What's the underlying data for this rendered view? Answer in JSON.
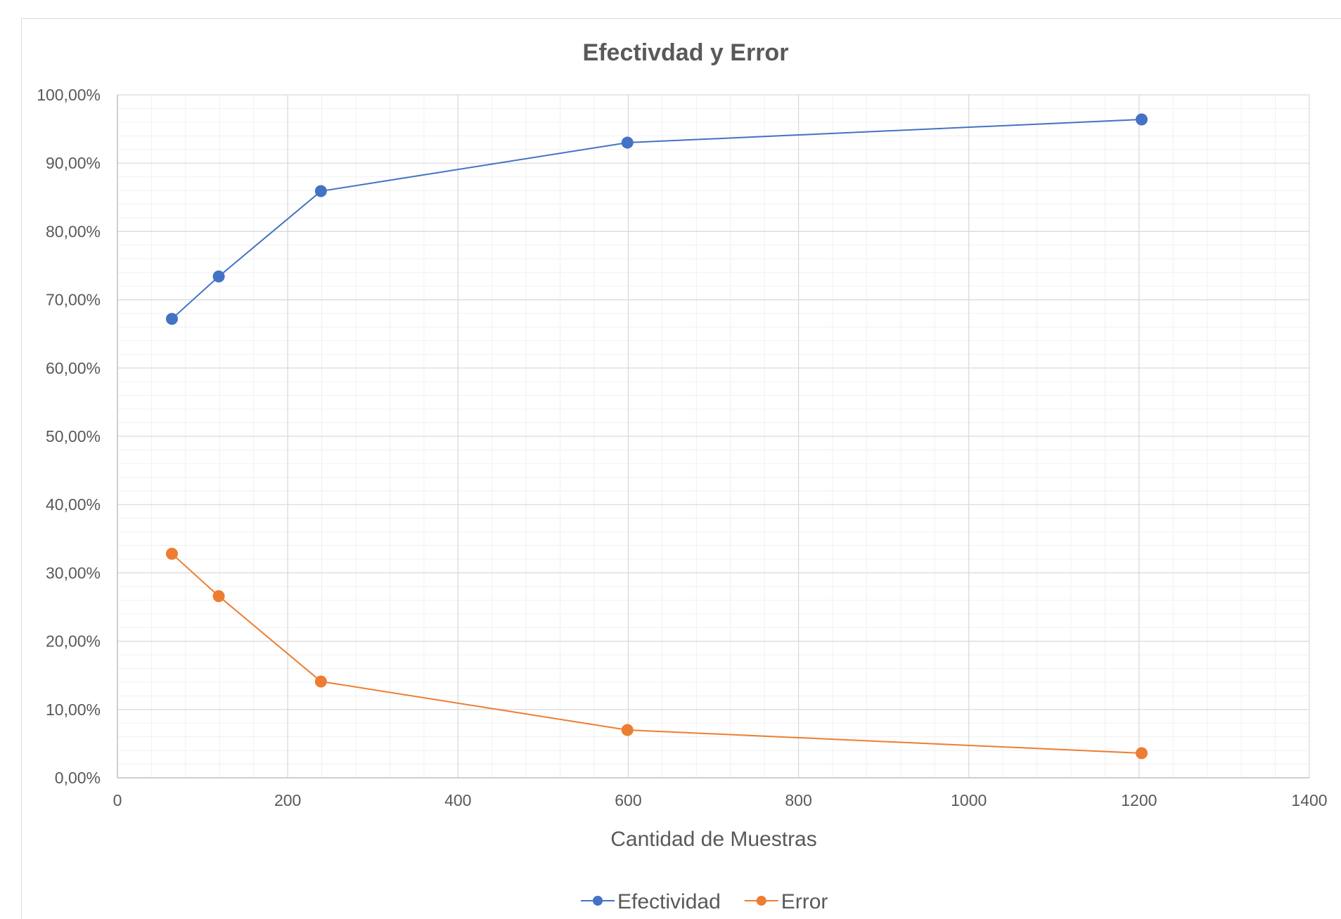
{
  "chart_data": {
    "type": "scatter",
    "title": "Efectivdad y Error",
    "xlabel": "Cantidad de Muestras",
    "ylabel": "",
    "xlim": [
      0,
      1400
    ],
    "ylim": [
      0,
      100
    ],
    "x_ticks": [
      "0",
      "200",
      "400",
      "600",
      "800",
      "1000",
      "1200",
      "1400"
    ],
    "y_ticks": [
      "0,00%",
      "10,00%",
      "20,00%",
      "30,00%",
      "40,00%",
      "50,00%",
      "60,00%",
      "70,00%",
      "80,00%",
      "90,00%",
      "100,00%"
    ],
    "grid": true,
    "legend_position": "bottom",
    "series": [
      {
        "name": "Efectividad",
        "color": "#4472C4",
        "points": [
          {
            "x": 64,
            "y": 67.2
          },
          {
            "x": 119,
            "y": 73.4
          },
          {
            "x": 239,
            "y": 85.9
          },
          {
            "x": 599,
            "y": 93.0
          },
          {
            "x": 1203,
            "y": 96.4
          }
        ]
      },
      {
        "name": "Error",
        "color": "#ED7D31",
        "points": [
          {
            "x": 64,
            "y": 32.8
          },
          {
            "x": 119,
            "y": 26.6
          },
          {
            "x": 239,
            "y": 14.1
          },
          {
            "x": 599,
            "y": 7.0
          },
          {
            "x": 1203,
            "y": 3.6
          }
        ]
      }
    ]
  }
}
